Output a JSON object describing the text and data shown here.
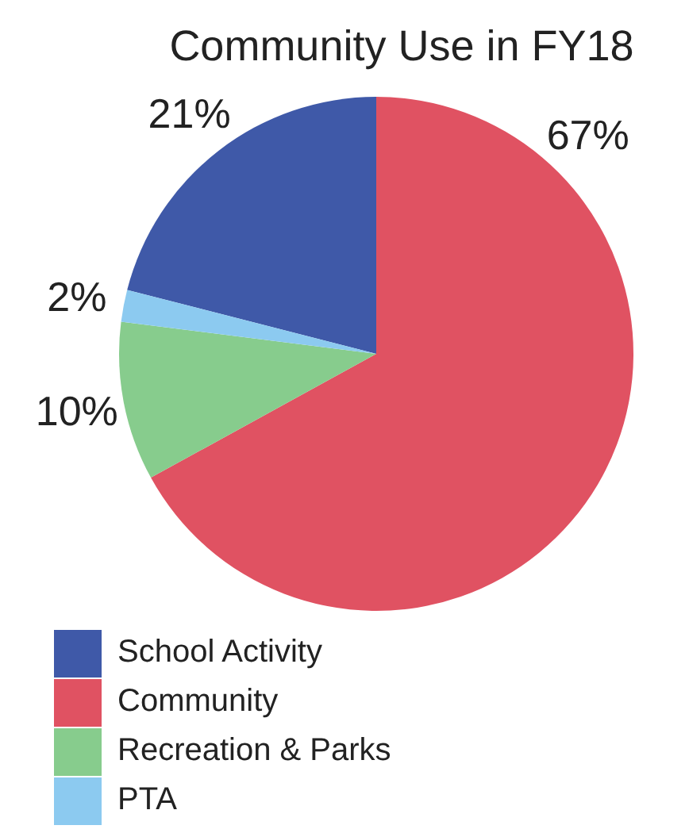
{
  "chart_data": {
    "type": "pie",
    "title": "Community Use in FY18",
    "categories": [
      "School Activity",
      "Community",
      "Recreation & Parks",
      "PTA"
    ],
    "values": [
      21,
      67,
      10,
      2
    ],
    "value_labels": [
      "21%",
      "67%",
      "10%",
      "2%"
    ],
    "colors": [
      "#3f59a8",
      "#e05262",
      "#87cc8d",
      "#8ccaf0"
    ],
    "legend": "bottom left"
  }
}
